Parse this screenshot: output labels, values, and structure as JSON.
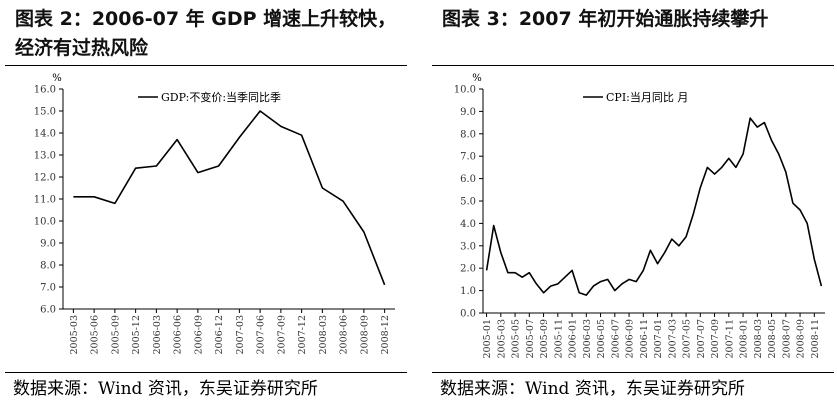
{
  "left": {
    "title": "图表 2：2006-07 年 GDP 增速上升较快，经济有过热风险",
    "source": "数据来源：Wind 资讯，东吴证券研究所",
    "chart_data": {
      "type": "line",
      "title": "",
      "ylabel": "%",
      "xlabel": "",
      "legend": "GDP:不变价:当季同比季",
      "legend_position": "top-center",
      "ylim": [
        6.0,
        16.0
      ],
      "yticks": [
        "16.0",
        "15.0",
        "14.0",
        "13.0",
        "12.0",
        "11.0",
        "10.0",
        "9.0",
        "8.0",
        "7.0",
        "6.0"
      ],
      "categories": [
        "2005-03",
        "2005-06",
        "2005-09",
        "2005-12",
        "2006-03",
        "2006-06",
        "2006-09",
        "2006-12",
        "2007-03",
        "2007-06",
        "2007-09",
        "2007-12",
        "2008-03",
        "2008-06",
        "2008-09",
        "2008-12"
      ],
      "series": [
        {
          "name": "GDP:不变价:当季同比季",
          "values": [
            11.1,
            11.1,
            10.8,
            12.4,
            12.5,
            13.7,
            12.2,
            12.5,
            13.8,
            15.0,
            14.3,
            13.9,
            11.5,
            10.9,
            9.5,
            7.1
          ]
        }
      ],
      "grid": false
    }
  },
  "right": {
    "title": "图表 3：2007 年初开始通胀持续攀升",
    "source": "数据来源：Wind 资讯，东吴证券研究所",
    "chart_data": {
      "type": "line",
      "title": "",
      "ylabel": "%",
      "xlabel": "",
      "legend": "CPI:当月同比 月",
      "legend_position": "top-center",
      "ylim": [
        0.0,
        10.0
      ],
      "yticks": [
        "10.0",
        "9.0",
        "8.0",
        "7.0",
        "6.0",
        "5.0",
        "4.0",
        "3.0",
        "2.0",
        "1.0",
        "0.0"
      ],
      "x": [
        "2005-01",
        "2005-02",
        "2005-03",
        "2005-04",
        "2005-05",
        "2005-06",
        "2005-07",
        "2005-08",
        "2005-09",
        "2005-10",
        "2005-11",
        "2005-12",
        "2006-01",
        "2006-02",
        "2006-03",
        "2006-04",
        "2006-05",
        "2006-06",
        "2006-07",
        "2006-08",
        "2006-09",
        "2006-10",
        "2006-11",
        "2006-12",
        "2007-01",
        "2007-02",
        "2007-03",
        "2007-04",
        "2007-05",
        "2007-06",
        "2007-07",
        "2007-08",
        "2007-09",
        "2007-10",
        "2007-11",
        "2007-12",
        "2008-01",
        "2008-02",
        "2008-03",
        "2008-04",
        "2008-05",
        "2008-06",
        "2008-07",
        "2008-08",
        "2008-09",
        "2008-10",
        "2008-11",
        "2008-12"
      ],
      "xticks": [
        "2005-01",
        "2005-03",
        "2005-05",
        "2005-07",
        "2005-09",
        "2005-11",
        "2006-01",
        "2006-03",
        "2006-05",
        "2006-07",
        "2006-09",
        "2006-11",
        "2007-01",
        "2007-03",
        "2007-05",
        "2007-07",
        "2007-09",
        "2007-11",
        "2008-01",
        "2008-03",
        "2008-05",
        "2008-07",
        "2008-09",
        "2008-11"
      ],
      "series": [
        {
          "name": "CPI:当月同比 月",
          "values": [
            1.9,
            3.9,
            2.7,
            1.8,
            1.8,
            1.6,
            1.8,
            1.3,
            0.9,
            1.2,
            1.3,
            1.6,
            1.9,
            0.9,
            0.8,
            1.2,
            1.4,
            1.5,
            1.0,
            1.3,
            1.5,
            1.4,
            1.9,
            2.8,
            2.2,
            2.7,
            3.3,
            3.0,
            3.4,
            4.4,
            5.6,
            6.5,
            6.2,
            6.5,
            6.9,
            6.5,
            7.1,
            8.7,
            8.3,
            8.5,
            7.7,
            7.1,
            6.3,
            4.9,
            4.6,
            4.0,
            2.4,
            1.2
          ]
        }
      ],
      "grid": false
    }
  }
}
